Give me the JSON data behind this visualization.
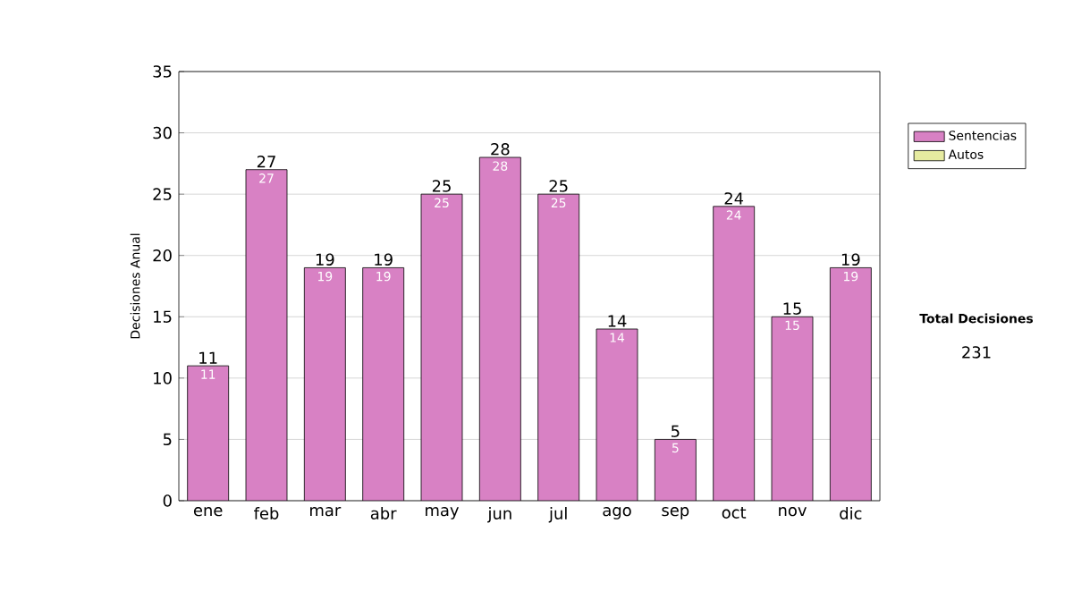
{
  "chart_data": {
    "type": "bar",
    "stacked": true,
    "ylabel": "Decisiones Anual",
    "categories": [
      "ene",
      "feb",
      "mar",
      "abr",
      "may",
      "jun",
      "jul",
      "ago",
      "sep",
      "oct",
      "nov",
      "dic"
    ],
    "series": [
      {
        "name": "Sentencias",
        "color": "#d881c4",
        "values": [
          11,
          27,
          19,
          19,
          25,
          28,
          25,
          14,
          5,
          24,
          15,
          19
        ],
        "value_labels": [
          "11",
          "27",
          "19",
          "19",
          "25",
          "28",
          "25",
          "14",
          "5",
          "24",
          "15",
          "19"
        ]
      },
      {
        "name": "Autos",
        "color": "#e6eba0",
        "values": [
          0,
          0,
          0,
          0,
          0,
          0,
          0,
          0,
          0,
          0,
          0,
          0
        ]
      }
    ],
    "totals": [
      "11",
      "27",
      "19",
      "19",
      "25",
      "28",
      "25",
      "14",
      "5",
      "24",
      "15",
      "19"
    ],
    "ylim": [
      0,
      35
    ],
    "yticks": [
      0,
      5,
      10,
      15,
      20,
      25,
      30,
      35
    ],
    "grid": "y",
    "legend": "right",
    "annotations": [
      "Total Decisiones",
      "231"
    ]
  }
}
